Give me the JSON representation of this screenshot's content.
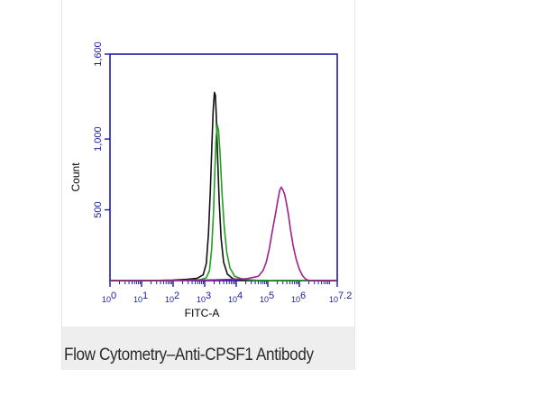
{
  "caption": "Flow Cytometry–Anti-CPSF1 Antibody",
  "chart_data": {
    "type": "line",
    "title": "",
    "xlabel": "FITC-A",
    "ylabel": "Count",
    "xscale": "log",
    "xlim": [
      0,
      7.2
    ],
    "ylim": [
      0,
      1600
    ],
    "x_ticks": [
      {
        "base": "10",
        "exp": "0",
        "value": 0
      },
      {
        "base": "10",
        "exp": "1",
        "value": 1
      },
      {
        "base": "10",
        "exp": "2",
        "value": 2
      },
      {
        "base": "10",
        "exp": "3",
        "value": 3
      },
      {
        "base": "10",
        "exp": "4",
        "value": 4
      },
      {
        "base": "10",
        "exp": "5",
        "value": 5
      },
      {
        "base": "10",
        "exp": "6",
        "value": 6
      },
      {
        "base": "10",
        "exp": "7.2",
        "value": 7.2
      }
    ],
    "y_ticks": [
      {
        "label": "500",
        "value": 500
      },
      {
        "label": "1,000",
        "value": 1000
      },
      {
        "label": "1,600",
        "value": 1600
      }
    ],
    "grid": false,
    "legend": "none",
    "axis_color": "#1a1aa6",
    "series": [
      {
        "color": "#111111",
        "points": [
          [
            0,
            0
          ],
          [
            1.2,
            0
          ],
          [
            2.0,
            4
          ],
          [
            2.4,
            8
          ],
          [
            2.75,
            15
          ],
          [
            2.95,
            40
          ],
          [
            3.05,
            120
          ],
          [
            3.12,
            330
          ],
          [
            3.18,
            640
          ],
          [
            3.23,
            960
          ],
          [
            3.27,
            1200
          ],
          [
            3.31,
            1330
          ],
          [
            3.34,
            1310
          ],
          [
            3.37,
            1160
          ],
          [
            3.41,
            880
          ],
          [
            3.46,
            560
          ],
          [
            3.52,
            300
          ],
          [
            3.6,
            130
          ],
          [
            3.72,
            45
          ],
          [
            3.9,
            12
          ],
          [
            4.2,
            4
          ],
          [
            5.0,
            0
          ],
          [
            7.2,
            0
          ]
        ]
      },
      {
        "color": "#22a020",
        "points": [
          [
            0,
            0
          ],
          [
            1.5,
            0
          ],
          [
            2.4,
            2
          ],
          [
            2.85,
            6
          ],
          [
            3.05,
            20
          ],
          [
            3.15,
            70
          ],
          [
            3.22,
            220
          ],
          [
            3.28,
            480
          ],
          [
            3.32,
            760
          ],
          [
            3.36,
            1000
          ],
          [
            3.4,
            1100
          ],
          [
            3.44,
            1060
          ],
          [
            3.49,
            880
          ],
          [
            3.55,
            610
          ],
          [
            3.62,
            380
          ],
          [
            3.7,
            200
          ],
          [
            3.8,
            90
          ],
          [
            3.95,
            30
          ],
          [
            4.2,
            10
          ],
          [
            4.6,
            3
          ],
          [
            5.5,
            0
          ],
          [
            7.2,
            0
          ]
        ]
      },
      {
        "color": "#a0208c",
        "points": [
          [
            0,
            0
          ],
          [
            1.5,
            0
          ],
          [
            2.5,
            3
          ],
          [
            3.3,
            5
          ],
          [
            3.8,
            8
          ],
          [
            4.3,
            12
          ],
          [
            4.7,
            30
          ],
          [
            4.85,
            70
          ],
          [
            4.95,
            130
          ],
          [
            5.05,
            230
          ],
          [
            5.15,
            360
          ],
          [
            5.25,
            480
          ],
          [
            5.32,
            570
          ],
          [
            5.38,
            640
          ],
          [
            5.43,
            660
          ],
          [
            5.48,
            640
          ],
          [
            5.53,
            610
          ],
          [
            5.58,
            560
          ],
          [
            5.65,
            470
          ],
          [
            5.72,
            360
          ],
          [
            5.8,
            250
          ],
          [
            5.9,
            150
          ],
          [
            6.0,
            80
          ],
          [
            6.1,
            35
          ],
          [
            6.2,
            10
          ],
          [
            6.3,
            0
          ],
          [
            7.2,
            0
          ]
        ]
      }
    ]
  }
}
